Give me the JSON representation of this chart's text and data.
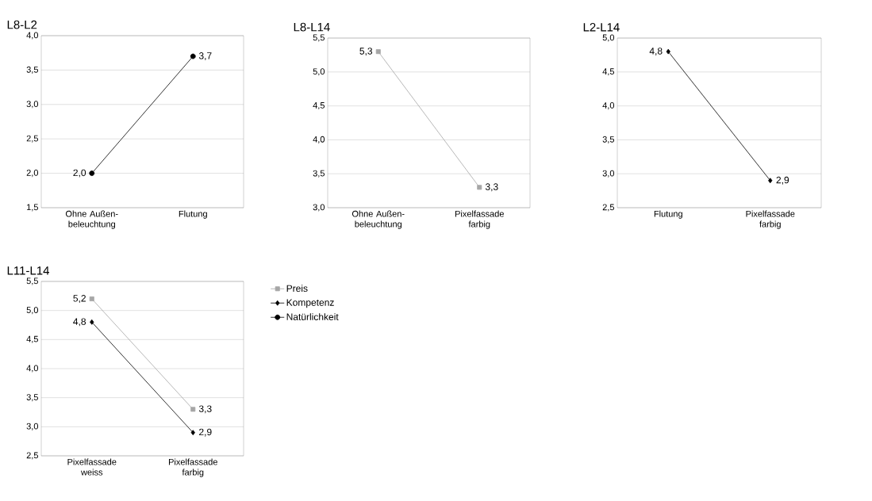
{
  "chart_data": [
    {
      "type": "line",
      "title": "L8-L2",
      "categories": [
        "Ohne Außen- beleuchtung",
        "Flutung"
      ],
      "ylim": [
        1.5,
        4.0
      ],
      "yticks": [
        {
          "value": 1.5,
          "label": "1,5"
        },
        {
          "value": 2.0,
          "label": "2,0"
        },
        {
          "value": 2.5,
          "label": "2,5"
        },
        {
          "value": 3.0,
          "label": "3,0"
        },
        {
          "value": 3.5,
          "label": "3,5"
        },
        {
          "value": 4.0,
          "label": "4,0"
        }
      ],
      "grid": "y",
      "series": [
        {
          "color": "#000000",
          "marker": "circle",
          "values": [
            2.0,
            3.7
          ],
          "value_labels": [
            "2,0",
            "3,7"
          ]
        }
      ]
    },
    {
      "type": "line",
      "title": "L8-L14",
      "categories": [
        "Ohne Außen- beleuchtung",
        "Pixelfassade farbig"
      ],
      "ylim": [
        3.0,
        5.5
      ],
      "yticks": [
        {
          "value": 3.0,
          "label": "3,0"
        },
        {
          "value": 3.5,
          "label": "3,5"
        },
        {
          "value": 4.0,
          "label": "4,0"
        },
        {
          "value": 4.5,
          "label": "4,5"
        },
        {
          "value": 5.0,
          "label": "5,0"
        },
        {
          "value": 5.5,
          "label": "5,5"
        }
      ],
      "grid": "y",
      "series": [
        {
          "color": "#a6a6a6",
          "marker": "square",
          "values": [
            5.3,
            3.3
          ],
          "value_labels": [
            "5,3",
            "3,3"
          ]
        }
      ]
    },
    {
      "type": "line",
      "title": "L2-L14",
      "categories": [
        "Flutung",
        "Pixelfassade farbig"
      ],
      "ylim": [
        2.5,
        5.0
      ],
      "yticks": [
        {
          "value": 2.5,
          "label": "2,5"
        },
        {
          "value": 3.0,
          "label": "3,0"
        },
        {
          "value": 3.5,
          "label": "3,5"
        },
        {
          "value": 4.0,
          "label": "4,0"
        },
        {
          "value": 4.5,
          "label": "4,5"
        },
        {
          "value": 5.0,
          "label": "5,0"
        }
      ],
      "grid": "y",
      "series": [
        {
          "color": "#000000",
          "marker": "diamond",
          "values": [
            4.8,
            2.9
          ],
          "value_labels": [
            "4,8",
            "2,9"
          ]
        }
      ]
    },
    {
      "type": "line",
      "title": "L11-L14",
      "categories": [
        "Pixelfassade weiss",
        "Pixelfassade farbig"
      ],
      "ylim": [
        2.5,
        5.5
      ],
      "yticks": [
        {
          "value": 2.5,
          "label": "2,5"
        },
        {
          "value": 3.0,
          "label": "3,0"
        },
        {
          "value": 3.5,
          "label": "3,5"
        },
        {
          "value": 4.0,
          "label": "4,0"
        },
        {
          "value": 4.5,
          "label": "4,5"
        },
        {
          "value": 5.0,
          "label": "5,0"
        },
        {
          "value": 5.5,
          "label": "5,5"
        }
      ],
      "grid": "y",
      "legend": "right",
      "series": [
        {
          "name": "Preis",
          "color": "#a6a6a6",
          "marker": "square",
          "values": [
            5.2,
            3.3
          ],
          "value_labels": [
            "5,2",
            "3,3"
          ]
        },
        {
          "name": "Kompetenz",
          "color": "#000000",
          "marker": "diamond",
          "values": [
            4.8,
            2.9
          ],
          "value_labels": [
            "4,8",
            "2,9"
          ]
        },
        {
          "name": "Natürlichkeit",
          "color": "#000000",
          "marker": "circle",
          "values": [
            null,
            null
          ]
        }
      ]
    }
  ]
}
